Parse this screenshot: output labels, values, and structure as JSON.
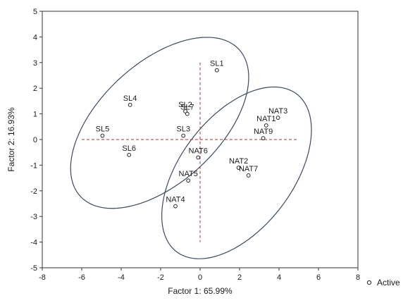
{
  "chart_data": {
    "type": "scatter",
    "xlabel": "Factor 1: 65.99%",
    "ylabel": "Factor 2: 16.93%",
    "xlim": [
      -8,
      8
    ],
    "ylim": [
      -5,
      5
    ],
    "xticks": [
      -8,
      -6,
      -4,
      -2,
      0,
      2,
      4,
      6,
      8
    ],
    "yticks": [
      -5,
      -4,
      -3,
      -2,
      -1,
      0,
      1,
      2,
      3,
      4,
      5
    ],
    "grid": false,
    "legend": {
      "position": "bottom-right",
      "entries": [
        "Active"
      ]
    },
    "reference_lines": {
      "x": 0,
      "y": 0,
      "style": "dashed",
      "color": "#b03030"
    },
    "series": [
      {
        "name": "Active",
        "points": [
          {
            "label": "SL1",
            "x": 0.85,
            "y": 2.7
          },
          {
            "label": "SL2",
            "x": -0.75,
            "y": 1.1
          },
          {
            "label": "SL7",
            "x": -0.65,
            "y": 1.0
          },
          {
            "label": "SL3",
            "x": -0.85,
            "y": 0.15
          },
          {
            "label": "SL4",
            "x": -3.55,
            "y": 1.35
          },
          {
            "label": "SL5",
            "x": -4.95,
            "y": 0.15
          },
          {
            "label": "SL6",
            "x": -3.6,
            "y": -0.6
          },
          {
            "label": "NAT3",
            "x": 3.95,
            "y": 0.85
          },
          {
            "label": "NAT1",
            "x": 3.35,
            "y": 0.55
          },
          {
            "label": "NAT9",
            "x": 3.2,
            "y": 0.05
          },
          {
            "label": "NAT6",
            "x": -0.1,
            "y": -0.7
          },
          {
            "label": "NAT2",
            "x": 1.95,
            "y": -1.1
          },
          {
            "label": "NAT7",
            "x": 2.45,
            "y": -1.4
          },
          {
            "label": "NAT5",
            "x": -0.6,
            "y": -1.6
          },
          {
            "label": "NAT4",
            "x": -1.25,
            "y": -2.6
          }
        ]
      }
    ],
    "ellipses": [
      {
        "cx": -2.05,
        "cy": 0.65,
        "rx": 5.0,
        "ry": 2.55,
        "angle_deg": 30,
        "color": "#3b4a5e"
      },
      {
        "cx": 1.85,
        "cy": -1.3,
        "rx": 4.4,
        "ry": 2.5,
        "angle_deg": 38,
        "color": "#3b4a5e"
      }
    ]
  }
}
